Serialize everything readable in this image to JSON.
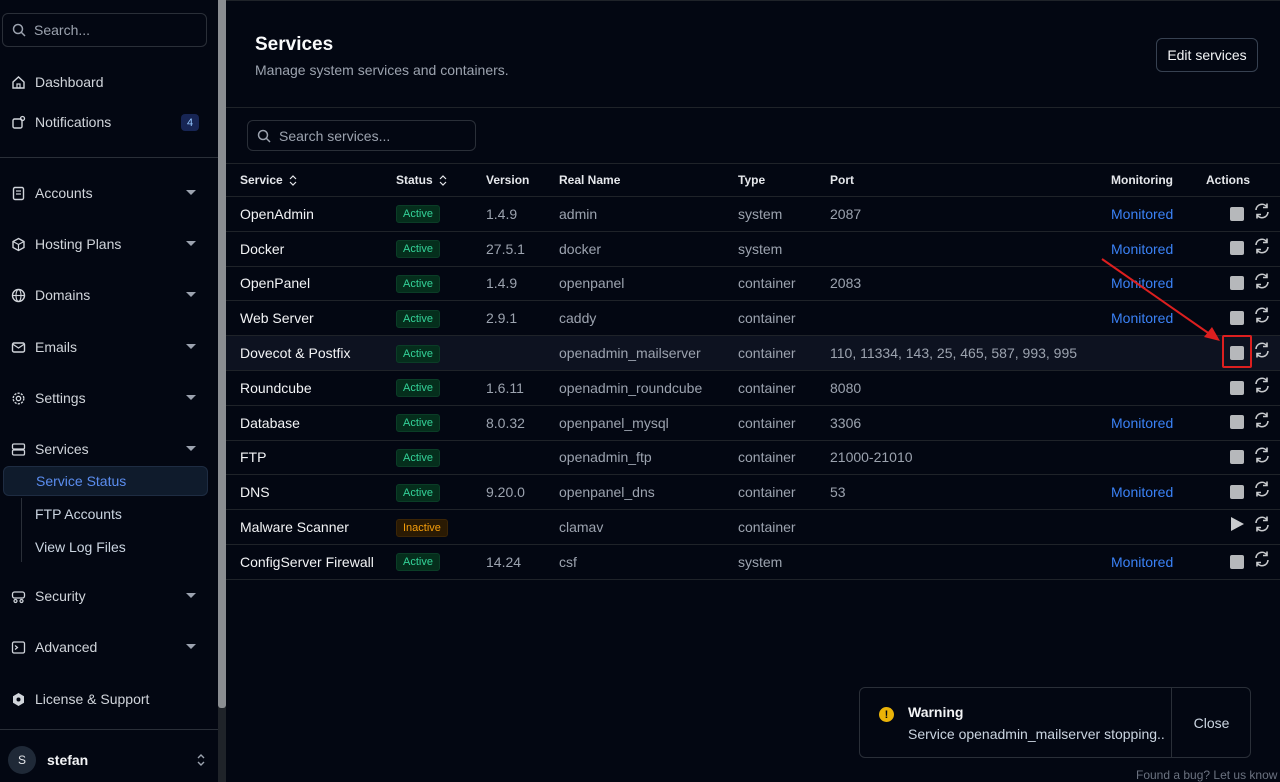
{
  "sidebar": {
    "search_placeholder": "Search...",
    "dashboard": "Dashboard",
    "notifications": "Notifications",
    "notifications_count": "4",
    "accounts": "Accounts",
    "hosting_plans": "Hosting Plans",
    "domains": "Domains",
    "emails": "Emails",
    "settings": "Settings",
    "services": "Services",
    "service_status": "Service Status",
    "ftp_accounts": "FTP Accounts",
    "view_log_files": "View Log Files",
    "security": "Security",
    "advanced": "Advanced",
    "license_support": "License & Support",
    "user_initial": "S",
    "user_name": "stefan"
  },
  "header": {
    "title": "Services",
    "subtitle": "Manage system services and containers.",
    "edit_button": "Edit services"
  },
  "search": {
    "placeholder": "Search services..."
  },
  "table": {
    "columns": {
      "service": "Service",
      "status": "Status",
      "version": "Version",
      "real_name": "Real Name",
      "type": "Type",
      "port": "Port",
      "monitoring": "Monitoring",
      "actions": "Actions"
    },
    "rows": [
      {
        "name": "OpenAdmin",
        "status": "Active",
        "version": "1.4.9",
        "real_name": "admin",
        "type": "system",
        "port": "2087",
        "monitoring": "Monitored",
        "action": "stop"
      },
      {
        "name": "Docker",
        "status": "Active",
        "version": "27.5.1",
        "real_name": "docker",
        "type": "system",
        "port": "",
        "monitoring": "Monitored",
        "action": "stop"
      },
      {
        "name": "OpenPanel",
        "status": "Active",
        "version": "1.4.9",
        "real_name": "openpanel",
        "type": "container",
        "port": "2083",
        "monitoring": "Monitored",
        "action": "stop"
      },
      {
        "name": "Web Server",
        "status": "Active",
        "version": "2.9.1",
        "real_name": "caddy",
        "type": "container",
        "port": "",
        "monitoring": "Monitored",
        "action": "stop"
      },
      {
        "name": "Dovecot & Postfix",
        "status": "Active",
        "version": "",
        "real_name": "openadmin_mailserver",
        "type": "container",
        "port": "110, 11334, 143, 25, 465, 587, 993, 995",
        "monitoring": "",
        "action": "stop"
      },
      {
        "name": "Roundcube",
        "status": "Active",
        "version": "1.6.11",
        "real_name": "openadmin_roundcube",
        "type": "container",
        "port": "8080",
        "monitoring": "",
        "action": "stop"
      },
      {
        "name": "Database",
        "status": "Active",
        "version": "8.0.32",
        "real_name": "openpanel_mysql",
        "type": "container",
        "port": "3306",
        "monitoring": "Monitored",
        "action": "stop"
      },
      {
        "name": "FTP",
        "status": "Active",
        "version": "",
        "real_name": "openadmin_ftp",
        "type": "container",
        "port": "21000-21010",
        "monitoring": "",
        "action": "stop"
      },
      {
        "name": "DNS",
        "status": "Active",
        "version": "9.20.0",
        "real_name": "openpanel_dns",
        "type": "container",
        "port": "53",
        "monitoring": "Monitored",
        "action": "stop"
      },
      {
        "name": "Malware Scanner",
        "status": "Inactive",
        "version": "",
        "real_name": "clamav",
        "type": "container",
        "port": "",
        "monitoring": "",
        "action": "start"
      },
      {
        "name": "ConfigServer Firewall",
        "status": "Active",
        "version": "14.24",
        "real_name": "csf",
        "type": "system",
        "port": "",
        "monitoring": "Monitored",
        "action": "stop"
      }
    ]
  },
  "toast": {
    "title": "Warning",
    "message": "Service openadmin_mailserver stopping..",
    "close": "Close"
  },
  "footer": {
    "bug_link": "Found a bug? Let us know"
  },
  "colors": {
    "background": "#030712",
    "accent": "#3b82f6",
    "active": "#34d399",
    "inactive": "#f59e0b",
    "highlight": "#dc1f1f"
  }
}
